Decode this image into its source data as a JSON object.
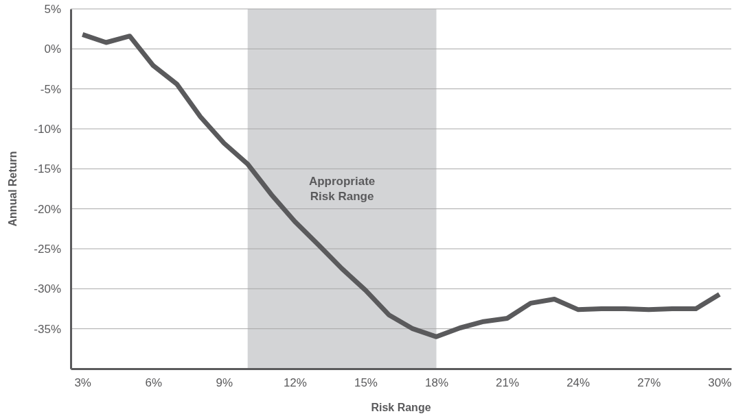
{
  "chart_data": {
    "type": "line",
    "xlabel": "Risk Range",
    "ylabel": "Annual Return",
    "x": [
      3,
      4,
      5,
      6,
      7,
      8,
      9,
      10,
      11,
      12,
      13,
      14,
      15,
      16,
      17,
      18,
      19,
      20,
      21,
      22,
      23,
      24,
      25,
      26,
      27,
      28,
      29,
      30
    ],
    "series": [
      {
        "color": "#5a5a5c",
        "values": [
          1.8,
          0.8,
          1.6,
          -2.1,
          -4.4,
          -8.5,
          -11.8,
          -14.4,
          -18.2,
          -21.6,
          -24.5,
          -27.5,
          -30.2,
          -33.3,
          -35.0,
          -36.0,
          -34.9,
          -34.1,
          -33.7,
          -31.8,
          -31.3,
          -32.6,
          -32.5,
          -32.5,
          -32.6,
          -32.5,
          -32.5,
          -30.7
        ]
      }
    ],
    "xlim": [
      2.5,
      30.5
    ],
    "xticks": [
      {
        "value": 3,
        "label": "3%"
      },
      {
        "value": 6,
        "label": "6%"
      },
      {
        "value": 9,
        "label": "9%"
      },
      {
        "value": 12,
        "label": "12%"
      },
      {
        "value": 15,
        "label": "15%"
      },
      {
        "value": 18,
        "label": "18%"
      },
      {
        "value": 21,
        "label": "21%"
      },
      {
        "value": 24,
        "label": "24%"
      },
      {
        "value": 27,
        "label": "27%"
      },
      {
        "value": 30,
        "label": "30%"
      }
    ],
    "ylim": [
      -40,
      5
    ],
    "yticks": [
      {
        "value": 5,
        "label": "5%"
      },
      {
        "value": 0,
        "label": "0%"
      },
      {
        "value": -5,
        "label": "-5%"
      },
      {
        "value": -10,
        "label": "-10%"
      },
      {
        "value": -15,
        "label": "-15%"
      },
      {
        "value": -20,
        "label": "-20%"
      },
      {
        "value": -25,
        "label": "-25%"
      },
      {
        "value": -30,
        "label": "-30%"
      },
      {
        "value": -35,
        "label": "-35%"
      }
    ],
    "bands": [
      {
        "axis": "x",
        "from": 10,
        "to": 18,
        "label": "Appropriate\nRisk Range",
        "color": "#d3d4d6"
      }
    ],
    "grid": "y",
    "marker": "none",
    "line_style": "solid"
  }
}
